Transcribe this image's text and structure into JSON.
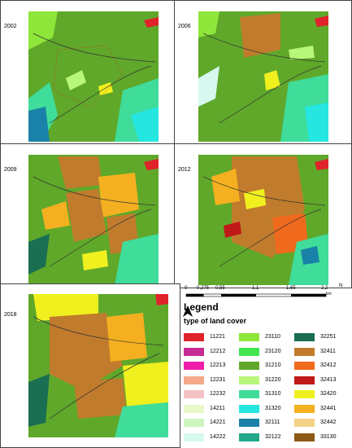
{
  "panels": [
    {
      "year": "2002"
    },
    {
      "year": "2006"
    },
    {
      "year": "2009"
    },
    {
      "year": "2012"
    },
    {
      "year": "2018"
    }
  ],
  "scale": {
    "ticks": [
      "0",
      "0,275",
      "0,55",
      "1,1",
      "1,65",
      "2,2"
    ],
    "unit": "km",
    "north_label": "N"
  },
  "legend": {
    "title": "Legend",
    "subtitle": "type of land cover",
    "items": [
      {
        "code": "11221",
        "color": "#e0232b"
      },
      {
        "code": "12212",
        "color": "#c62b94"
      },
      {
        "code": "12213",
        "color": "#ee1ea8"
      },
      {
        "code": "12231",
        "color": "#f3a98a"
      },
      {
        "code": "12232",
        "color": "#f3c2c4"
      },
      {
        "code": "14211",
        "color": "#e8f8c6"
      },
      {
        "code": "14221",
        "color": "#cdf5c0"
      },
      {
        "code": "14222",
        "color": "#d6f8ee"
      },
      {
        "code": "23110",
        "color": "#8fe63a"
      },
      {
        "code": "23120",
        "color": "#41e64e"
      },
      {
        "code": "31210",
        "color": "#5fa82a"
      },
      {
        "code": "31220",
        "color": "#b8f77a"
      },
      {
        "code": "31310",
        "color": "#3fdc9a"
      },
      {
        "code": "31320",
        "color": "#25e6e0"
      },
      {
        "code": "32111",
        "color": "#1a82a8"
      },
      {
        "code": "32122",
        "color": "#22a88a"
      },
      {
        "code": "32251",
        "color": "#1a6e52"
      },
      {
        "code": "32411",
        "color": "#c07c2c"
      },
      {
        "code": "32412",
        "color": "#f06a1e"
      },
      {
        "code": "32413",
        "color": "#c01818"
      },
      {
        "code": "32420",
        "color": "#f0f01e"
      },
      {
        "code": "32441",
        "color": "#f4b020"
      },
      {
        "code": "32442",
        "color": "#f4d28a"
      },
      {
        "code": "33130",
        "color": "#8a5a14"
      }
    ]
  }
}
